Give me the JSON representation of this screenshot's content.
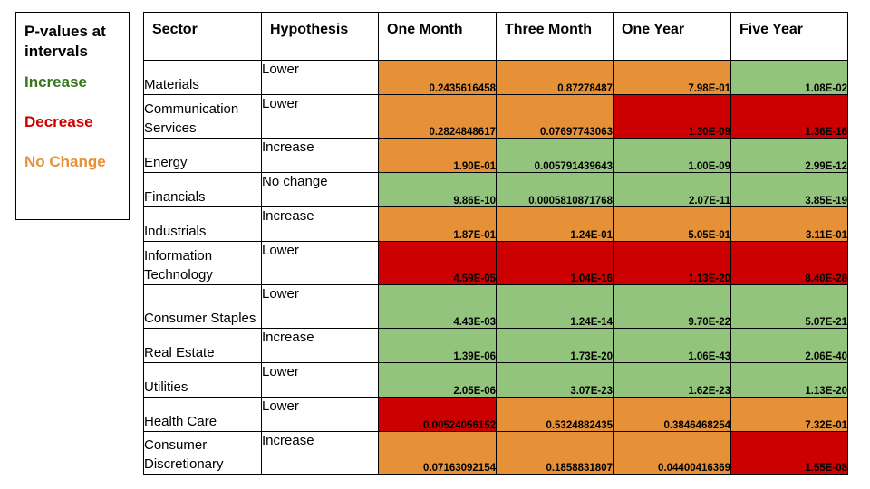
{
  "legend": {
    "title": "P-values at intervals",
    "items": [
      {
        "label": "Increase",
        "color": "#38761d"
      },
      {
        "label": "Decrease",
        "color": "#cc0000"
      },
      {
        "label": "No Change",
        "color": "#e69138"
      }
    ]
  },
  "table": {
    "headers": [
      "Sector",
      "Hypothesis",
      "One Month",
      "Three Month",
      "One Year",
      "Five Year"
    ],
    "rows": [
      {
        "sector": "Materials",
        "hypothesis": "Lower",
        "values": [
          "0.2435616458",
          "0.87278487",
          "7.98E-01",
          "1.08E-02"
        ],
        "colors": [
          "o",
          "o",
          "o",
          "g"
        ]
      },
      {
        "sector": "Communication Services",
        "hypothesis": "Lower",
        "values": [
          "0.2824848617",
          "0.07697743063",
          "1.30E-09",
          "1.36E-16"
        ],
        "colors": [
          "o",
          "o",
          "r",
          "r"
        ]
      },
      {
        "sector": "Energy",
        "hypothesis": "Increase",
        "values": [
          "1.90E-01",
          "0.005791439643",
          "1.00E-09",
          "2.99E-12"
        ],
        "colors": [
          "o",
          "g",
          "g",
          "g"
        ]
      },
      {
        "sector": "Financials",
        "hypothesis": "No change",
        "values": [
          "9.86E-10",
          "0.0005810871768",
          "2.07E-11",
          "3.85E-19"
        ],
        "colors": [
          "g",
          "g",
          "g",
          "g"
        ]
      },
      {
        "sector": "Industrials",
        "hypothesis": "Increase",
        "values": [
          "1.87E-01",
          "1.24E-01",
          "5.05E-01",
          "3.11E-01"
        ],
        "colors": [
          "o",
          "o",
          "o",
          "o"
        ]
      },
      {
        "sector": "Information Technology",
        "hypothesis": "Lower",
        "values": [
          "4.59E-05",
          "1.04E-16",
          "1.13E-20",
          "8.40E-28"
        ],
        "colors": [
          "r",
          "r",
          "r",
          "r"
        ]
      },
      {
        "sector": "Consumer Staples",
        "hypothesis": "Lower",
        "values": [
          "4.43E-03",
          "1.24E-14",
          "9.70E-22",
          "5.07E-21"
        ],
        "colors": [
          "g",
          "g",
          "g",
          "g"
        ]
      },
      {
        "sector": "Real Estate",
        "hypothesis": "Increase",
        "values": [
          "1.39E-06",
          "1.73E-20",
          "1.06E-43",
          "2.06E-40"
        ],
        "colors": [
          "g",
          "g",
          "g",
          "g"
        ]
      },
      {
        "sector": "Utilities",
        "hypothesis": "Lower",
        "values": [
          "2.05E-06",
          "3.07E-23",
          "1.62E-23",
          "1.13E-20"
        ],
        "colors": [
          "g",
          "g",
          "g",
          "g"
        ]
      },
      {
        "sector": "Health Care",
        "hypothesis": "Lower",
        "values": [
          "0.00524056152",
          "0.5324882435",
          "0.3846468254",
          "7.32E-01"
        ],
        "colors": [
          "r",
          "o",
          "o",
          "o"
        ]
      },
      {
        "sector": "Consumer Discretionary",
        "hypothesis": "Increase",
        "values": [
          "0.07163092154",
          "0.1858831807",
          "0.04400416369",
          "1.55E-08"
        ],
        "colors": [
          "o",
          "o",
          "o",
          "r"
        ]
      }
    ]
  }
}
